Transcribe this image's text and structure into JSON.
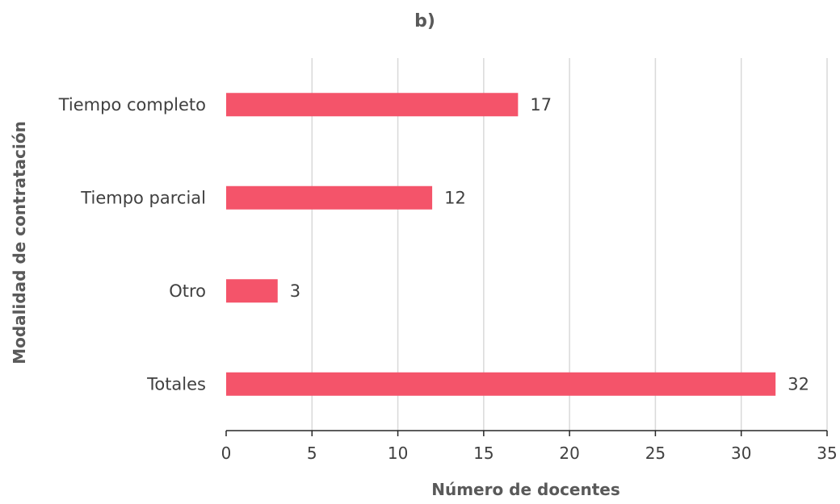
{
  "chart_data": {
    "type": "bar",
    "orientation": "horizontal",
    "title": "b)",
    "xlabel": "Número de docentes",
    "ylabel": "Modalidad de contratación",
    "categories": [
      "Tiempo completo",
      "Tiempo parcial",
      "Otro",
      "Totales"
    ],
    "values": [
      17,
      12,
      3,
      32
    ],
    "xlim": [
      0,
      35
    ],
    "xticks": [
      0,
      5,
      10,
      15,
      20,
      25,
      30,
      35
    ],
    "grid": true,
    "data_labels": true,
    "bar_color": "#f4546a"
  }
}
